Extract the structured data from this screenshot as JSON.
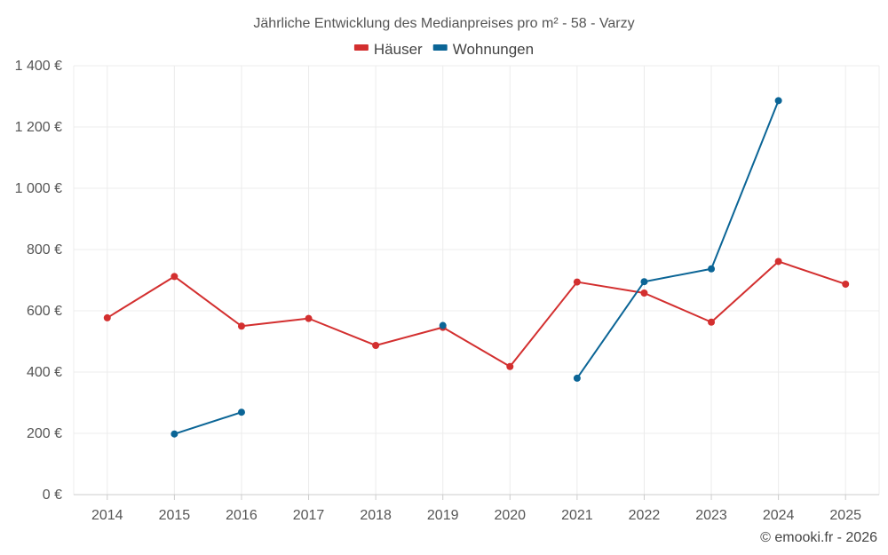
{
  "chart_data": {
    "type": "line",
    "title": "Jährliche Entwicklung des Medianpreises pro m² - 58 - Varzy",
    "xlabel": "",
    "ylabel": "",
    "categories": [
      "2014",
      "2015",
      "2016",
      "2017",
      "2018",
      "2019",
      "2020",
      "2021",
      "2022",
      "2023",
      "2024",
      "2025"
    ],
    "ylim": [
      0,
      1400
    ],
    "yticks": [
      0,
      200,
      400,
      600,
      800,
      1000,
      1200,
      1400
    ],
    "ytick_labels": [
      "0 €",
      "200 €",
      "400 €",
      "600 €",
      "800 €",
      "1 000 €",
      "1 200 €",
      "1 400 €"
    ],
    "grid": true,
    "legend_position": "top-center",
    "series": [
      {
        "name": "Häuser",
        "color": "#d32f2f",
        "values": [
          577,
          712,
          550,
          575,
          487,
          546,
          418,
          694,
          658,
          563,
          761,
          687
        ]
      },
      {
        "name": "Wohnungen",
        "color": "#0b6596",
        "values": [
          null,
          198,
          269,
          null,
          null,
          552,
          null,
          380,
          695,
          737,
          1286,
          null
        ]
      }
    ]
  },
  "footer": {
    "copyright": "© emooki.fr - 2026"
  }
}
